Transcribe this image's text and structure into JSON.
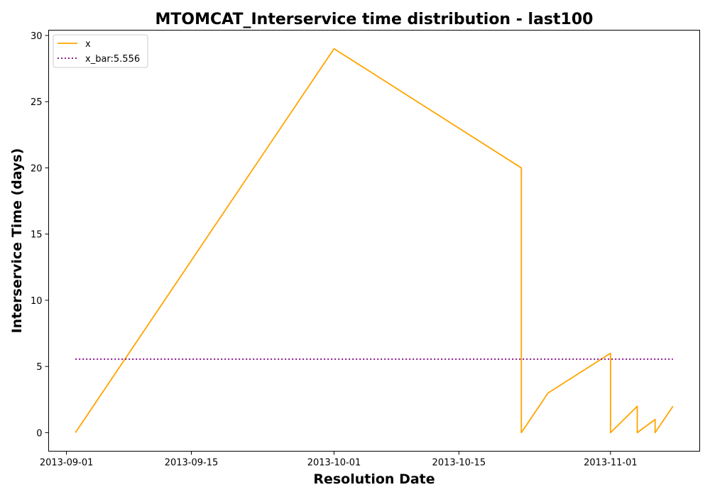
{
  "chart_data": {
    "type": "line",
    "title": "MTOMCAT_Interservice time distribution - last100",
    "xlabel": "Resolution Date",
    "ylabel": "Interservice Time (days)",
    "x_ticks": [
      "2013-09-01",
      "2013-09-15",
      "2013-10-01",
      "2013-10-15",
      "2013-11-01"
    ],
    "y_ticks": [
      "0",
      "5",
      "10",
      "15",
      "20",
      "25",
      "30"
    ],
    "xlim": [
      "2013-08-30",
      "2013-11-11"
    ],
    "ylim": [
      -1.4,
      30.4
    ],
    "series": [
      {
        "name": "x",
        "color": "#ffa500",
        "style": "solid",
        "points": [
          {
            "x": "2013-09-02",
            "y": 0
          },
          {
            "x": "2013-10-01",
            "y": 29
          },
          {
            "x": "2013-10-22",
            "y": 20
          },
          {
            "x": "2013-10-22",
            "y": 0
          },
          {
            "x": "2013-10-25",
            "y": 3
          },
          {
            "x": "2013-11-01",
            "y": 6
          },
          {
            "x": "2013-11-01",
            "y": 0
          },
          {
            "x": "2013-11-04",
            "y": 2
          },
          {
            "x": "2013-11-04",
            "y": 0
          },
          {
            "x": "2013-11-06",
            "y": 1
          },
          {
            "x": "2013-11-06",
            "y": 0
          },
          {
            "x": "2013-11-08",
            "y": 2
          }
        ]
      },
      {
        "name": "x_bar:5.556",
        "color": "#800080",
        "style": "dotted",
        "points": [
          {
            "x": "2013-09-02",
            "y": 5.556
          },
          {
            "x": "2013-11-08",
            "y": 5.556
          }
        ]
      }
    ],
    "legend_position": "upper-left",
    "grid": false
  }
}
